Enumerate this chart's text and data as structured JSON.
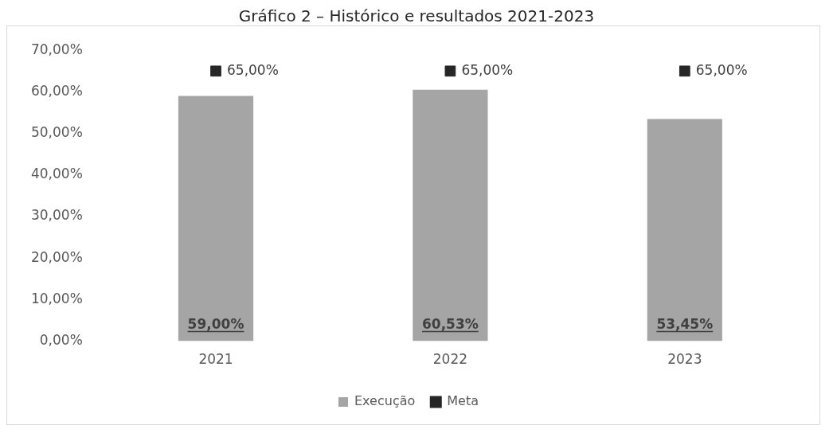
{
  "chart_data": {
    "type": "bar",
    "title": "Gráfico 2 – Histórico e resultados 2021-2023",
    "categories": [
      "2021",
      "2022",
      "2023"
    ],
    "series": [
      {
        "name": "Execução",
        "color": "#a5a5a5",
        "values": [
          59,
          60.53,
          53.45
        ],
        "value_labels": [
          "59,00%",
          "60,53%",
          "53,45%"
        ]
      },
      {
        "name": "Meta",
        "type": "scatter",
        "marker": "square",
        "color": "#262626",
        "values": [
          65,
          65,
          65
        ],
        "value_labels": [
          "65,00%",
          "65,00%",
          "65,00%"
        ]
      }
    ],
    "ylim": [
      0,
      70
    ],
    "yticks": [
      {
        "value": 0,
        "label": "0,00%"
      },
      {
        "value": 10,
        "label": "10,00%"
      },
      {
        "value": 20,
        "label": "20,00%"
      },
      {
        "value": 30,
        "label": "30,00%"
      },
      {
        "value": 40,
        "label": "40,00%"
      },
      {
        "value": 50,
        "label": "50,00%"
      },
      {
        "value": 60,
        "label": "60,00%"
      },
      {
        "value": 70,
        "label": "70,00%"
      }
    ],
    "grid": false,
    "legend": "bottom"
  }
}
